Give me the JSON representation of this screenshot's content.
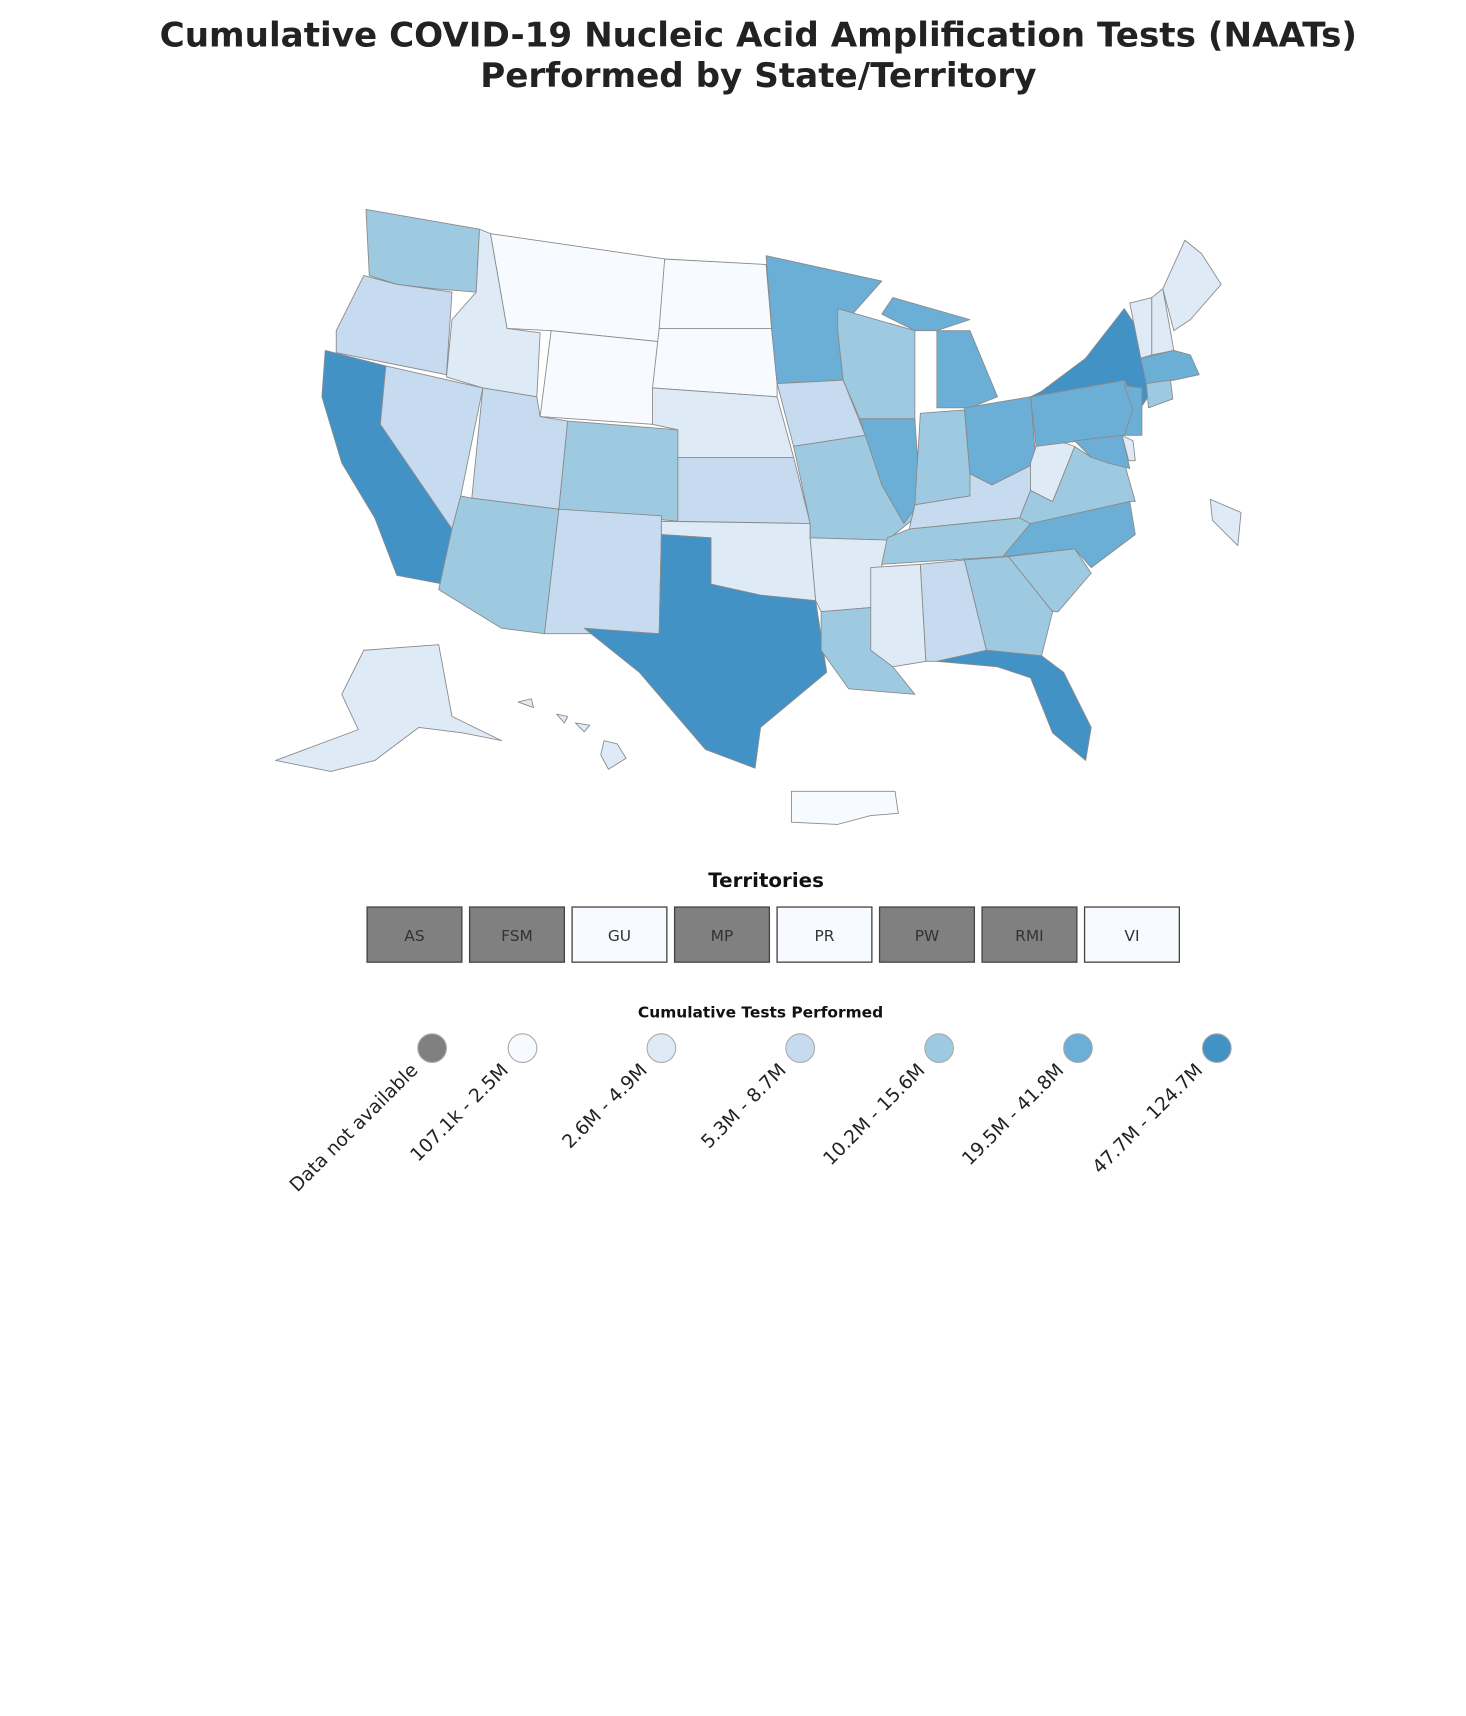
{
  "title": "Cumulative COVID-19 Nucleic Acid Amplification Tests (NAATs) Performed by State/Territory",
  "territories": {
    "heading": "Territories",
    "items": [
      {
        "label": "AS",
        "bin": 0
      },
      {
        "label": "FSM",
        "bin": 0
      },
      {
        "label": "GU",
        "bin": 1
      },
      {
        "label": "MP",
        "bin": 0
      },
      {
        "label": "PR",
        "bin": 1
      },
      {
        "label": "PW",
        "bin": 0
      },
      {
        "label": "RMI",
        "bin": 0
      },
      {
        "label": "VI",
        "bin": 1
      }
    ]
  },
  "legend": {
    "title": "Cumulative Tests Performed",
    "items": [
      {
        "label": "Data not available",
        "color": "#808080"
      },
      {
        "label": "107.1k - 2.5M",
        "color": "#f7fbff"
      },
      {
        "label": "2.6M - 4.9M",
        "color": "#deebf7"
      },
      {
        "label": "5.3M - 8.7M",
        "color": "#c6dbef"
      },
      {
        "label": "10.2M - 15.6M",
        "color": "#9ecae1"
      },
      {
        "label": "19.5M - 41.8M",
        "color": "#6baed6"
      },
      {
        "label": "47.7M - 124.7M",
        "color": "#4292c6"
      }
    ]
  }
}
